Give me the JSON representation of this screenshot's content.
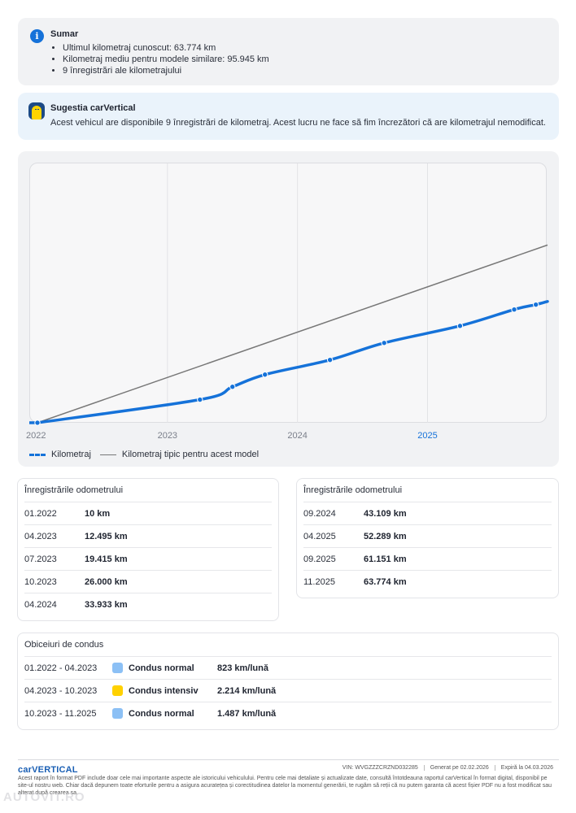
{
  "summary": {
    "title": "Sumar",
    "items": [
      "Ultimul kilometraj cunoscut: 63.774 km",
      "Kilometraj mediu pentru modele similare: 95.945 km",
      "9 înregistrări ale kilometrajului"
    ]
  },
  "suggestion": {
    "title": "Sugestia carVertical",
    "text": "Acest vehicul are disponibile 9 înregistrări de kilometraj. Acest lucru ne face să fim încrezători că are kilometrajul nemodificat."
  },
  "chart_data": {
    "type": "line",
    "x_ticks": [
      "2022",
      "2023",
      "2024",
      "2025"
    ],
    "highlighted_tick": "2025",
    "y_axis_labels_shown": false,
    "grid": "vertical",
    "legend_placement": "bottom-left",
    "series": [
      {
        "name": "Kilometraj",
        "color": "#1572d9",
        "style": "line with markers",
        "points": [
          {
            "x": "01.2022",
            "y": 10
          },
          {
            "x": "04.2023",
            "y": 12495
          },
          {
            "x": "07.2023",
            "y": 19415
          },
          {
            "x": "10.2023",
            "y": 26000
          },
          {
            "x": "04.2024",
            "y": 33933
          },
          {
            "x": "09.2024",
            "y": 43109
          },
          {
            "x": "04.2025",
            "y": 52289
          },
          {
            "x": "09.2025",
            "y": 61151
          },
          {
            "x": "11.2025",
            "y": 63774
          }
        ]
      },
      {
        "name": "Kilometraj tipic pentru acest model",
        "color": "#777777",
        "style": "straight line",
        "points": [
          {
            "x": "01.2022",
            "y": 0
          },
          {
            "x": "12.2025",
            "y": 95945
          }
        ]
      }
    ]
  },
  "odometer_left": {
    "title": "Înregistrările odometrului",
    "rows": [
      {
        "date": "01.2022",
        "value": "10 km"
      },
      {
        "date": "04.2023",
        "value": "12.495 km"
      },
      {
        "date": "07.2023",
        "value": "19.415 km"
      },
      {
        "date": "10.2023",
        "value": "26.000 km"
      },
      {
        "date": "04.2024",
        "value": "33.933 km"
      }
    ]
  },
  "odometer_right": {
    "title": "Înregistrările odometrului",
    "rows": [
      {
        "date": "09.2024",
        "value": "43.109 km"
      },
      {
        "date": "04.2025",
        "value": "52.289 km"
      },
      {
        "date": "09.2025",
        "value": "61.151 km"
      },
      {
        "date": "11.2025",
        "value": "63.774 km"
      }
    ]
  },
  "driving": {
    "title": "Obiceiuri de condus",
    "rows": [
      {
        "period": "01.2022 - 04.2023",
        "style": "Condus normal",
        "rate": "823 km/lună",
        "color": "#8cc0f5"
      },
      {
        "period": "04.2023 - 10.2023",
        "style": "Condus intensiv",
        "rate": "2.214 km/lună",
        "color": "#ffd100"
      },
      {
        "period": "10.2023 - 11.2025",
        "style": "Condus normal",
        "rate": "1.487 km/lună",
        "color": "#8cc0f5"
      }
    ]
  },
  "footer": {
    "logo": "carVERTICAL",
    "vin": "VIN: WVGZZZCRZND032285",
    "generated": "Generat pe 02.02.2026",
    "expires": "Expiră la 04.03.2026",
    "disclaimer": "Acest raport în format PDF include doar cele mai importante aspecte ale istoricului vehiculului. Pentru cele mai detaliate și actualizate date, consultă întotdeauna raportul carVertical în format digital, disponibil pe site-ul nostru web. Chiar dacă depunem toate eforturile pentru a asigura acuratețea și corectitudinea datelor la momentul generării, te rugăm să reții că nu putem garanta că acest fișier PDF nu a fost modificat sau alterat după crearea sa."
  },
  "watermark": "AUTOVIT.RO"
}
